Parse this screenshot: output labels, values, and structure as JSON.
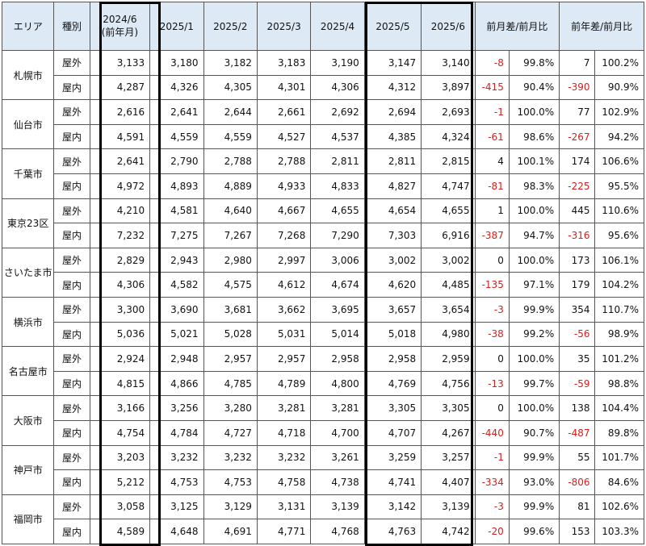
{
  "headers": {
    "area": "エリア",
    "type": "種別",
    "p2024_line1": "2024/6",
    "p2024_line2": "(前年月)",
    "m1": "2025/1",
    "m2": "2025/2",
    "m3": "2025/3",
    "m4": "2025/4",
    "m5": "2025/5",
    "m6": "2025/6",
    "mom": "前月差/前月比",
    "yoy": "前年差/前月比"
  },
  "rows": [
    {
      "area": "札幌市",
      "items": [
        {
          "type": "屋外",
          "v": [
            "3,133",
            "3,180",
            "3,182",
            "3,183",
            "3,190",
            "3,147",
            "3,140"
          ],
          "md": "-8",
          "mr": "99.8%",
          "yd": "7",
          "yr": "100.2%"
        },
        {
          "type": "屋内",
          "v": [
            "4,287",
            "4,326",
            "4,305",
            "4,301",
            "4,306",
            "4,312",
            "3,897"
          ],
          "md": "-415",
          "mr": "90.4%",
          "yd": "-390",
          "yr": "90.9%"
        }
      ]
    },
    {
      "area": "仙台市",
      "items": [
        {
          "type": "屋外",
          "v": [
            "2,616",
            "2,641",
            "2,644",
            "2,661",
            "2,692",
            "2,694",
            "2,693"
          ],
          "md": "-1",
          "mr": "100.0%",
          "yd": "77",
          "yr": "102.9%"
        },
        {
          "type": "屋内",
          "v": [
            "4,591",
            "4,559",
            "4,559",
            "4,527",
            "4,537",
            "4,385",
            "4,324"
          ],
          "md": "-61",
          "mr": "98.6%",
          "yd": "-267",
          "yr": "94.2%"
        }
      ]
    },
    {
      "area": "千葉市",
      "items": [
        {
          "type": "屋外",
          "v": [
            "2,641",
            "2,790",
            "2,788",
            "2,788",
            "2,811",
            "2,811",
            "2,815"
          ],
          "md": "4",
          "mr": "100.1%",
          "yd": "174",
          "yr": "106.6%"
        },
        {
          "type": "屋内",
          "v": [
            "4,972",
            "4,893",
            "4,889",
            "4,933",
            "4,833",
            "4,827",
            "4,747"
          ],
          "md": "-81",
          "mr": "98.3%",
          "yd": "-225",
          "yr": "95.5%"
        }
      ]
    },
    {
      "area": "東京23区",
      "items": [
        {
          "type": "屋外",
          "v": [
            "4,210",
            "4,581",
            "4,640",
            "4,667",
            "4,655",
            "4,654",
            "4,655"
          ],
          "md": "1",
          "mr": "100.0%",
          "yd": "445",
          "yr": "110.6%"
        },
        {
          "type": "屋内",
          "v": [
            "7,232",
            "7,275",
            "7,267",
            "7,268",
            "7,290",
            "7,303",
            "6,916"
          ],
          "md": "-387",
          "mr": "94.7%",
          "yd": "-316",
          "yr": "95.6%"
        }
      ]
    },
    {
      "area": "さいたま市",
      "items": [
        {
          "type": "屋外",
          "v": [
            "2,829",
            "2,943",
            "2,980",
            "2,997",
            "3,006",
            "3,002",
            "3,002"
          ],
          "md": "0",
          "mr": "100.0%",
          "yd": "173",
          "yr": "106.1%"
        },
        {
          "type": "屋内",
          "v": [
            "4,306",
            "4,582",
            "4,575",
            "4,612",
            "4,674",
            "4,620",
            "4,485"
          ],
          "md": "-135",
          "mr": "97.1%",
          "yd": "179",
          "yr": "104.2%"
        }
      ]
    },
    {
      "area": "横浜市",
      "items": [
        {
          "type": "屋外",
          "v": [
            "3,300",
            "3,690",
            "3,681",
            "3,662",
            "3,695",
            "3,657",
            "3,654"
          ],
          "md": "-3",
          "mr": "99.9%",
          "yd": "354",
          "yr": "110.7%"
        },
        {
          "type": "屋内",
          "v": [
            "5,036",
            "5,021",
            "5,028",
            "5,031",
            "5,014",
            "5,018",
            "4,980"
          ],
          "md": "-38",
          "mr": "99.2%",
          "yd": "-56",
          "yr": "98.9%"
        }
      ]
    },
    {
      "area": "名古屋市",
      "items": [
        {
          "type": "屋外",
          "v": [
            "2,924",
            "2,948",
            "2,957",
            "2,957",
            "2,958",
            "2,958",
            "2,959"
          ],
          "md": "0",
          "mr": "100.0%",
          "yd": "35",
          "yr": "101.2%"
        },
        {
          "type": "屋内",
          "v": [
            "4,815",
            "4,866",
            "4,785",
            "4,789",
            "4,800",
            "4,769",
            "4,756"
          ],
          "md": "-13",
          "mr": "99.7%",
          "yd": "-59",
          "yr": "98.8%"
        }
      ]
    },
    {
      "area": "大阪市",
      "items": [
        {
          "type": "屋外",
          "v": [
            "3,166",
            "3,256",
            "3,280",
            "3,281",
            "3,281",
            "3,305",
            "3,305"
          ],
          "md": "0",
          "mr": "100.0%",
          "yd": "138",
          "yr": "104.4%"
        },
        {
          "type": "屋内",
          "v": [
            "4,754",
            "4,784",
            "4,727",
            "4,718",
            "4,700",
            "4,707",
            "4,267"
          ],
          "md": "-440",
          "mr": "90.7%",
          "yd": "-487",
          "yr": "89.8%"
        }
      ]
    },
    {
      "area": "神戸市",
      "items": [
        {
          "type": "屋外",
          "v": [
            "3,203",
            "3,232",
            "3,232",
            "3,232",
            "3,261",
            "3,259",
            "3,257"
          ],
          "md": "-1",
          "mr": "99.9%",
          "yd": "55",
          "yr": "101.7%"
        },
        {
          "type": "屋内",
          "v": [
            "5,212",
            "4,753",
            "4,753",
            "4,758",
            "4,738",
            "4,741",
            "4,407"
          ],
          "md": "-334",
          "mr": "93.0%",
          "yd": "-806",
          "yr": "84.6%"
        }
      ]
    },
    {
      "area": "福岡市",
      "items": [
        {
          "type": "屋外",
          "v": [
            "3,058",
            "3,125",
            "3,129",
            "3,131",
            "3,139",
            "3,142",
            "3,139"
          ],
          "md": "-3",
          "mr": "99.9%",
          "yd": "81",
          "yr": "102.6%"
        },
        {
          "type": "屋内",
          "v": [
            "4,589",
            "4,648",
            "4,691",
            "4,771",
            "4,768",
            "4,763",
            "4,742"
          ],
          "md": "-20",
          "mr": "99.6%",
          "yd": "153",
          "yr": "103.3%"
        }
      ]
    }
  ],
  "colors": {
    "header_bg": "#dde9f5",
    "negative": "#d42020"
  }
}
